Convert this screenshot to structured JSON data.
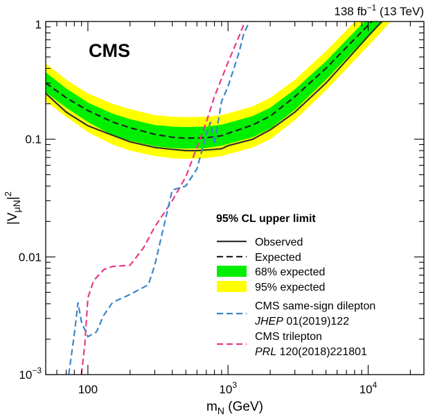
{
  "chart_data": {
    "type": "line",
    "experiment_label": "CMS",
    "lumi_label": "138 fb",
    "lumi_sup": "−1",
    "lumi_energy": " (13 TeV)",
    "xlabel": "m",
    "xlabel_sub": "N",
    "xlabel_unit": " (GeV)",
    "ylabel_pre": "|V",
    "ylabel_sub": "μN",
    "ylabel_post": "|",
    "ylabel_sup": "2",
    "xscale": "log",
    "yscale": "log",
    "xlim": [
      50,
      25000
    ],
    "ylim": [
      0.001,
      1
    ],
    "x_ticks": [
      {
        "value": 100,
        "label": "100",
        "sup": ""
      },
      {
        "value": 1000,
        "label": "10",
        "sup": "3"
      },
      {
        "value": 10000,
        "label": "10",
        "sup": "4"
      }
    ],
    "y_ticks": [
      {
        "value": 0.001,
        "label": "10",
        "sup": "−3"
      },
      {
        "value": 0.01,
        "label": "0.01",
        "sup": ""
      },
      {
        "value": 0.1,
        "label": "0.1",
        "sup": ""
      },
      {
        "value": 1,
        "label": "1",
        "sup": ""
      }
    ],
    "legend_title": "95% CL upper limit",
    "legend_position": "center-right",
    "colors": {
      "observed": "#333333",
      "expected": "#222222",
      "band68": "#00ef00",
      "band95": "#ffff00",
      "dilepton": "#3a86c8",
      "trilepton": "#e8388a"
    },
    "band95": {
      "x": [
        50,
        70,
        100,
        150,
        200,
        300,
        400,
        500,
        700,
        900,
        1500,
        2000,
        3000,
        5000,
        10000,
        25000
      ],
      "low": [
        0.21,
        0.155,
        0.115,
        0.09,
        0.08,
        0.072,
        0.069,
        0.068,
        0.069,
        0.072,
        0.085,
        0.1,
        0.145,
        0.26,
        0.62,
        2.0
      ],
      "high": [
        0.44,
        0.32,
        0.245,
        0.2,
        0.18,
        0.16,
        0.155,
        0.154,
        0.155,
        0.16,
        0.19,
        0.225,
        0.32,
        0.56,
        1.3,
        4.0
      ]
    },
    "band68": {
      "x": [
        50,
        70,
        100,
        150,
        200,
        300,
        400,
        500,
        700,
        900,
        1500,
        2000,
        3000,
        5000,
        10000,
        25000
      ],
      "low": [
        0.25,
        0.185,
        0.14,
        0.108,
        0.097,
        0.087,
        0.084,
        0.083,
        0.084,
        0.088,
        0.104,
        0.123,
        0.178,
        0.32,
        0.76,
        2.4
      ],
      "high": [
        0.37,
        0.27,
        0.205,
        0.165,
        0.148,
        0.132,
        0.128,
        0.127,
        0.128,
        0.133,
        0.157,
        0.185,
        0.265,
        0.46,
        1.08,
        3.3
      ]
    },
    "series": [
      {
        "name": "Observed",
        "style": "solid",
        "x": [
          50,
          70,
          100,
          150,
          200,
          300,
          400,
          500,
          600,
          700,
          800,
          900,
          1000,
          1500,
          2000,
          3000,
          5000,
          10000,
          25000
        ],
        "y": [
          0.245,
          0.17,
          0.13,
          0.108,
          0.095,
          0.085,
          0.082,
          0.08,
          0.08,
          0.081,
          0.082,
          0.083,
          0.088,
          0.1,
          0.12,
          0.17,
          0.3,
          0.75,
          2.4
        ]
      },
      {
        "name": "Expected",
        "style": "dashed",
        "x": [
          50,
          70,
          100,
          150,
          200,
          300,
          400,
          500,
          700,
          900,
          1000,
          1500,
          2000,
          3000,
          5000,
          10000,
          25000
        ],
        "y": [
          0.3,
          0.225,
          0.175,
          0.14,
          0.125,
          0.11,
          0.104,
          0.102,
          0.103,
          0.107,
          0.112,
          0.132,
          0.157,
          0.23,
          0.4,
          0.93,
          2.9
        ]
      },
      {
        "name": "CMS same-sign dilepton",
        "ref_journal": "JHEP",
        "ref_rest": " 01(2019)122",
        "style": "dashed",
        "x": [
          73,
          80,
          85,
          90,
          100,
          115,
          130,
          150,
          200,
          270,
          300,
          400,
          500,
          600,
          700,
          750,
          800,
          900,
          1000,
          1200,
          1300,
          1600
        ],
        "y": [
          0.001,
          0.0022,
          0.0041,
          0.0028,
          0.0021,
          0.0023,
          0.0032,
          0.0041,
          0.0048,
          0.0058,
          0.0085,
          0.037,
          0.04,
          0.056,
          0.11,
          0.14,
          0.09,
          0.21,
          0.28,
          0.55,
          0.8,
          1.3
        ]
      },
      {
        "name": "CMS trilepton",
        "ref_journal": "PRL",
        "ref_rest": " 120(2018)221801",
        "style": "dashed",
        "x": [
          90,
          95,
          100,
          110,
          130,
          150,
          200,
          250,
          300,
          400,
          500,
          600,
          700,
          800,
          1000,
          1200,
          1400
        ],
        "y": [
          0.001,
          0.0018,
          0.0045,
          0.0063,
          0.0078,
          0.0083,
          0.0085,
          0.012,
          0.018,
          0.03,
          0.048,
          0.085,
          0.14,
          0.23,
          0.45,
          0.75,
          1.2
        ]
      }
    ],
    "legend_items": [
      {
        "label": "Observed",
        "kind": "solid"
      },
      {
        "label": "Expected",
        "kind": "dashed"
      },
      {
        "label": "68% expected",
        "kind": "band68"
      },
      {
        "label": "95% expected",
        "kind": "band95"
      }
    ]
  }
}
